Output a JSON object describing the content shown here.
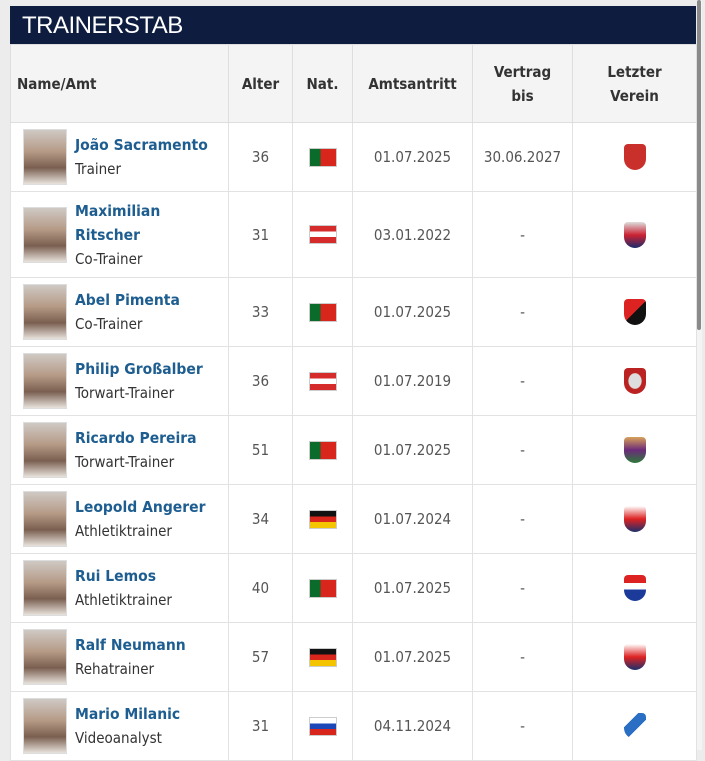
{
  "title": "TRAINERSTAB",
  "headers": {
    "name": "Name/Amt",
    "age": "Alter",
    "nat": "Nat.",
    "start": "Amtsantritt",
    "contract": "Vertrag bis",
    "last_club": "Letzter Verein"
  },
  "rows": [
    {
      "name": "João Sacramento",
      "role": "Trainer",
      "age": "36",
      "nat": "portugal-flag",
      "start": "01.07.2025",
      "contract": "30.06.2027",
      "club": "red-shield-crest"
    },
    {
      "name": "Maximilian Ritscher",
      "role": "Co-Trainer",
      "age": "31",
      "nat": "austria-flag",
      "start": "03.01.2022",
      "contract": "-",
      "club": "red-blue-c-crest"
    },
    {
      "name": "Abel Pimenta",
      "role": "Co-Trainer",
      "age": "33",
      "nat": "portugal-flag",
      "start": "01.07.2025",
      "contract": "-",
      "club": "rennes-crest"
    },
    {
      "name": "Philip Großalber",
      "role": "Torwart-Trainer",
      "age": "36",
      "nat": "austria-flag",
      "start": "01.07.2019",
      "contract": "-",
      "club": "red-round-crest"
    },
    {
      "name": "Ricardo Pereira",
      "role": "Torwart-Trainer",
      "age": "51",
      "nat": "portugal-flag",
      "start": "01.07.2025",
      "contract": "-",
      "club": "valladolid-crest"
    },
    {
      "name": "Leopold Angerer",
      "role": "Athletiktrainer",
      "age": "34",
      "nat": "germany-flag",
      "start": "01.07.2024",
      "contract": "-",
      "club": "red-bull-crest"
    },
    {
      "name": "Rui Lemos",
      "role": "Athletiktrainer",
      "age": "40",
      "nat": "portugal-flag",
      "start": "01.07.2025",
      "contract": "-",
      "club": "lyon-crest"
    },
    {
      "name": "Ralf Neumann",
      "role": "Rehatrainer",
      "age": "57",
      "nat": "germany-flag",
      "start": "01.07.2025",
      "contract": "-",
      "club": "red-bull-crest"
    },
    {
      "name": "Mario Milanic",
      "role": "Videoanalyst",
      "age": "31",
      "nat": "slovenia-flag",
      "start": "04.11.2024",
      "contract": "-",
      "club": "blue-swoosh-logo"
    }
  ],
  "colors": {
    "header_bg": "#0d1c3f",
    "link": "#1d5d90"
  }
}
